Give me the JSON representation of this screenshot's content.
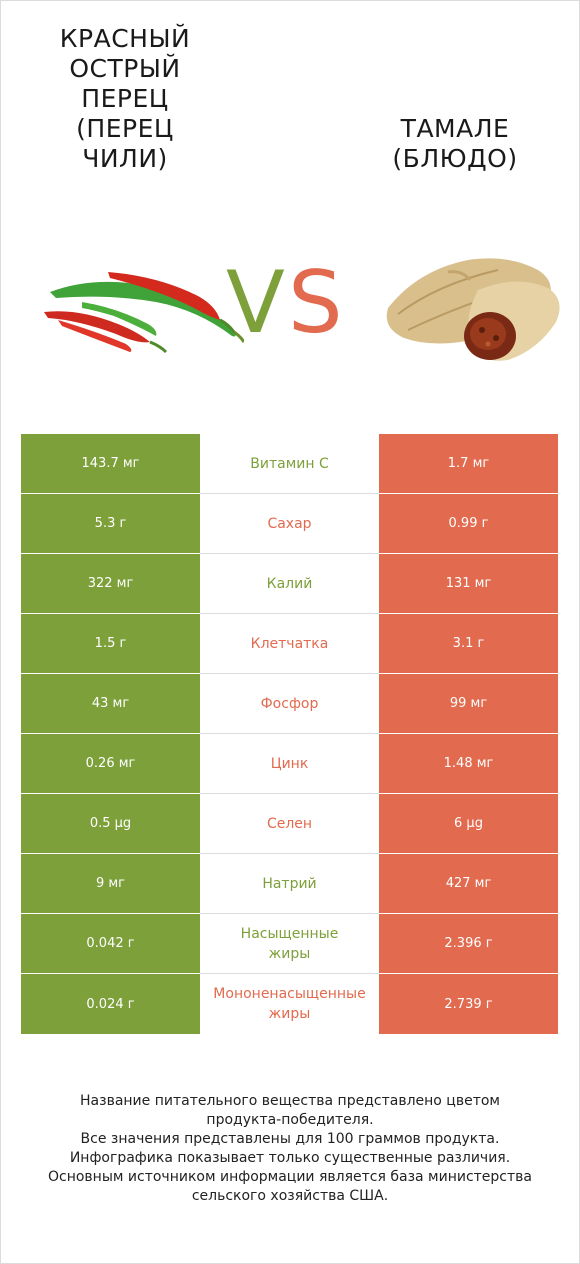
{
  "title_left": "КРАСНЫЙ\nОСТРЫЙ\nПЕРЕЦ\n(ПЕРЕЦ\nЧИЛИ)",
  "title_right": "ТАМАЛЕ\n(БЛЮДО)",
  "vs": {
    "v": "V",
    "s": "S"
  },
  "colors": {
    "green": "#7da03a",
    "orange": "#e26a4e"
  },
  "rows": [
    {
      "left": "143.7 мг",
      "name": "Витамин C",
      "right": "1.7 мг",
      "winner": "green"
    },
    {
      "left": "5.3 г",
      "name": "Сахар",
      "right": "0.99 г",
      "winner": "orange"
    },
    {
      "left": "322 мг",
      "name": "Калий",
      "right": "131 мг",
      "winner": "green"
    },
    {
      "left": "1.5 г",
      "name": "Клетчатка",
      "right": "3.1 г",
      "winner": "orange"
    },
    {
      "left": "43 мг",
      "name": "Фосфор",
      "right": "99 мг",
      "winner": "orange"
    },
    {
      "left": "0.26 мг",
      "name": "Цинк",
      "right": "1.48 мг",
      "winner": "orange"
    },
    {
      "left": "0.5 µg",
      "name": "Селен",
      "right": "6 µg",
      "winner": "orange"
    },
    {
      "left": "9 мг",
      "name": "Натрий",
      "right": "427 мг",
      "winner": "green"
    },
    {
      "left": "0.042 г",
      "name": "Насыщенные\nжиры",
      "right": "2.396 г",
      "winner": "green"
    },
    {
      "left": "0.024 г",
      "name": "Мононенасыщенные\nжиры",
      "right": "2.739 г",
      "winner": "orange"
    }
  ],
  "footer": [
    "Название питательного вещества представлено цветом",
    "продукта-победителя.",
    "Все значения представлены для 100 граммов продукта.",
    "Инфографика показывает только существенные различия.",
    "Основным источником информации является база министерства",
    "сельского хозяйства США."
  ]
}
